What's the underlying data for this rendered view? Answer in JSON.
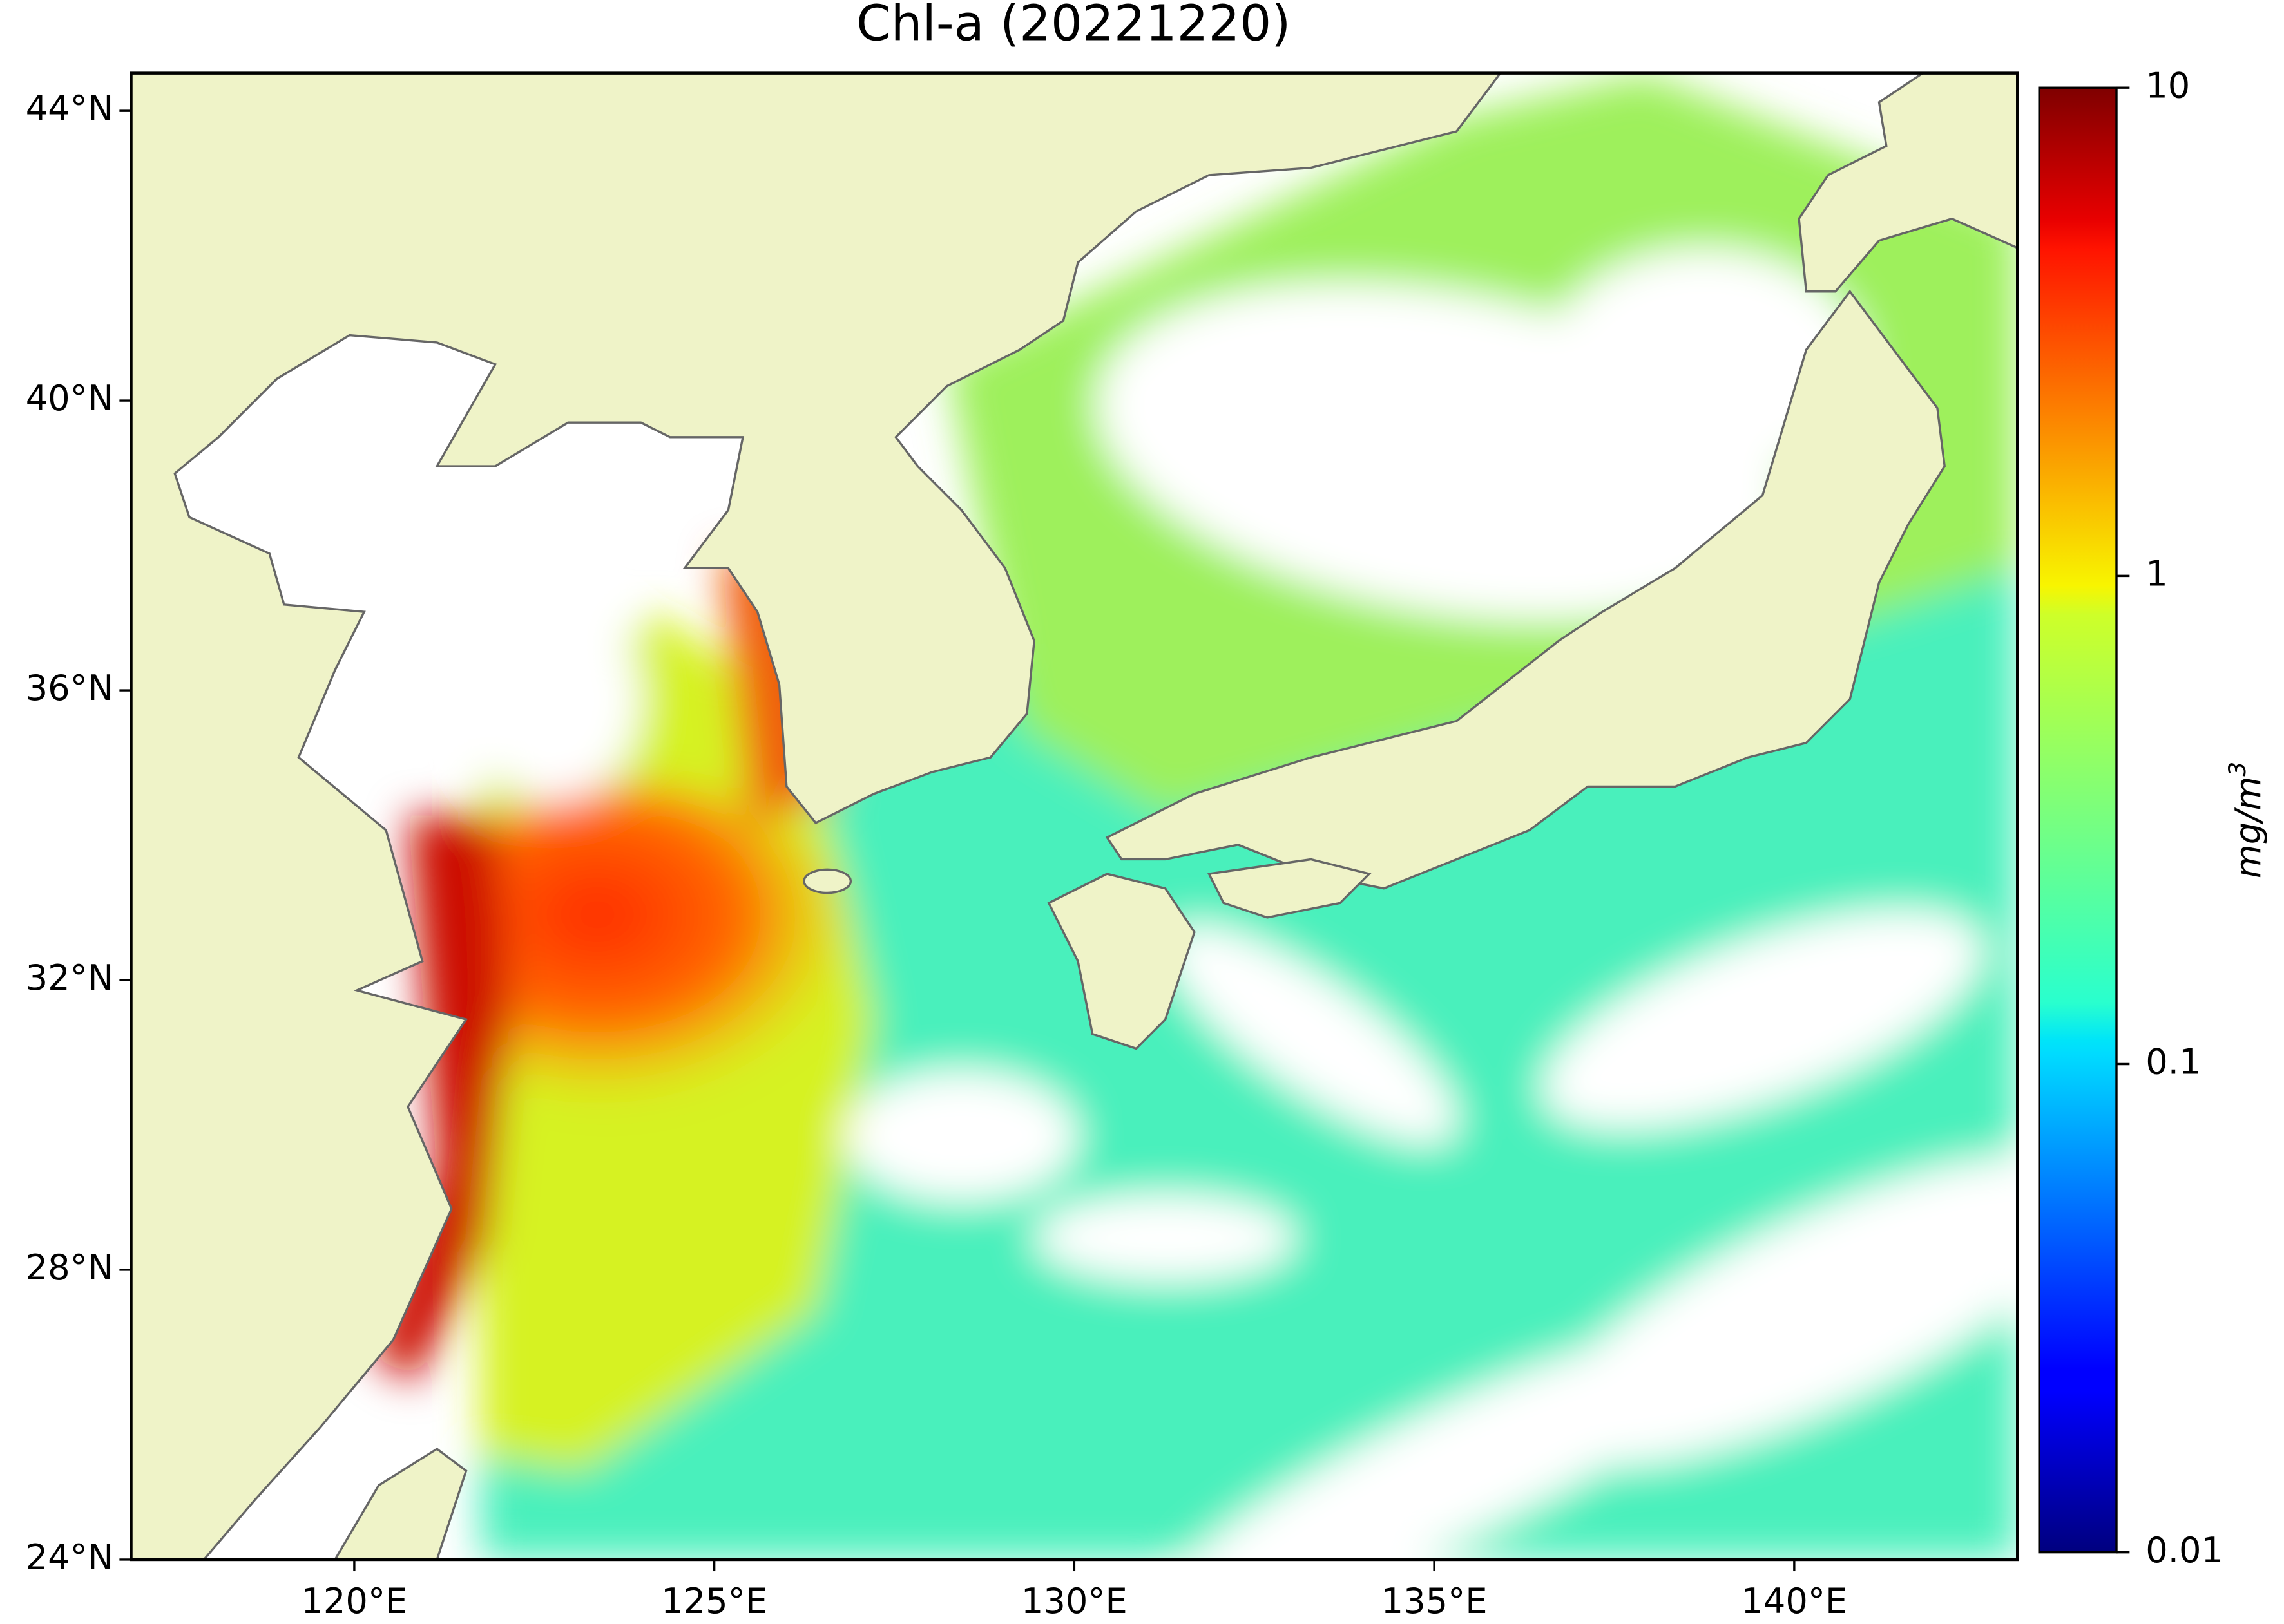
{
  "title": "Chl-a (20221220)",
  "map": {
    "lon_range": [
      116.9,
      143.1
    ],
    "lat_range": [
      24,
      44.52
    ],
    "lon_ticks": [
      {
        "value": 120,
        "label": "120°E"
      },
      {
        "value": 125,
        "label": "125°E"
      },
      {
        "value": 130,
        "label": "130°E"
      },
      {
        "value": 135,
        "label": "135°E"
      },
      {
        "value": 140,
        "label": "140°E"
      }
    ],
    "lat_ticks": [
      {
        "value": 24,
        "label": "24°N"
      },
      {
        "value": 28,
        "label": "28°N"
      },
      {
        "value": 32,
        "label": "32°N"
      },
      {
        "value": 36,
        "label": "36°N"
      },
      {
        "value": 40,
        "label": "40°N"
      },
      {
        "value": 44,
        "label": "44°N"
      }
    ]
  },
  "colorbar": {
    "label": "mg/m",
    "label_sup": "3",
    "range": [
      0.01,
      10
    ],
    "log": true,
    "ticks": [
      0.01,
      0.1,
      1,
      10
    ]
  }
}
